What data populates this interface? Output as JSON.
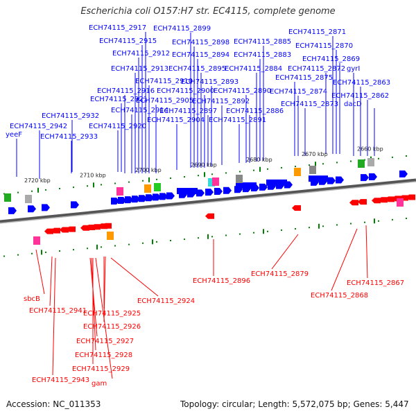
{
  "title": "Escherichia coli O157:H7 str. EC4115, complete genome",
  "footer": {
    "accession": "Accession: NC_011353",
    "summary": "Topology: circular; Length: 5,572,075 bp; Genes: 5,447"
  },
  "colors": {
    "forward": "#0000ff",
    "reverse": "#ff0000",
    "backbone": "#666666",
    "tick": "#008000",
    "background": "#ffffff"
  },
  "ticks": [
    "2720 kbp",
    "2710 kbp",
    "2700 kbp",
    "2690 kbp",
    "2680 kbp",
    "2670 kbp",
    "2660 kbp"
  ],
  "top_labels": [
    "yeeF",
    "ECH74115_2942",
    "ECH74115_2933",
    "ECH74115_2932",
    "ECH74115_2920",
    "ECH74115_2921",
    "ECH74115_2916",
    "ECH74115_2914",
    "ECH74115_2913",
    "ECH74115_2912",
    "ECH74115_2915",
    "ECH74115_2917",
    "ECH74115_2910",
    "ECH74115_2905",
    "ECH74115_2904",
    "ECH74115_2899",
    "ECH74115_2898",
    "ECH74115_2894",
    "ECH74115_2895",
    "ECH74115_2900",
    "ECH74115_2897",
    "ECH74115_2893",
    "ECH74115_2892",
    "ECH74115_2891",
    "ECH74115_2890",
    "ECH74115_2886",
    "ECH74115_2885",
    "ECH74115_2884",
    "ECH74115_2883",
    "ECH74115_2875",
    "ECH74115_2874",
    "ECH74115_2873",
    "ECH74115_2872",
    "ECH74115_2871",
    "ECH74115_2870",
    "ECH74115_2869",
    "gyrI",
    "ECH74115_2863",
    "ECH74115_2862",
    "dacD"
  ],
  "bottom_labels": [
    "sbcB",
    "ECH74115_2941",
    "ECH74115_2925",
    "ECH74115_2926",
    "ECH74115_2927",
    "ECH74115_2928",
    "ECH74115_2929",
    "gam",
    "ECH74115_2943",
    "ECH74115_2924",
    "ECH74115_2896",
    "ECH74115_2879",
    "ECH74115_2868",
    "ECH74115_2867"
  ]
}
